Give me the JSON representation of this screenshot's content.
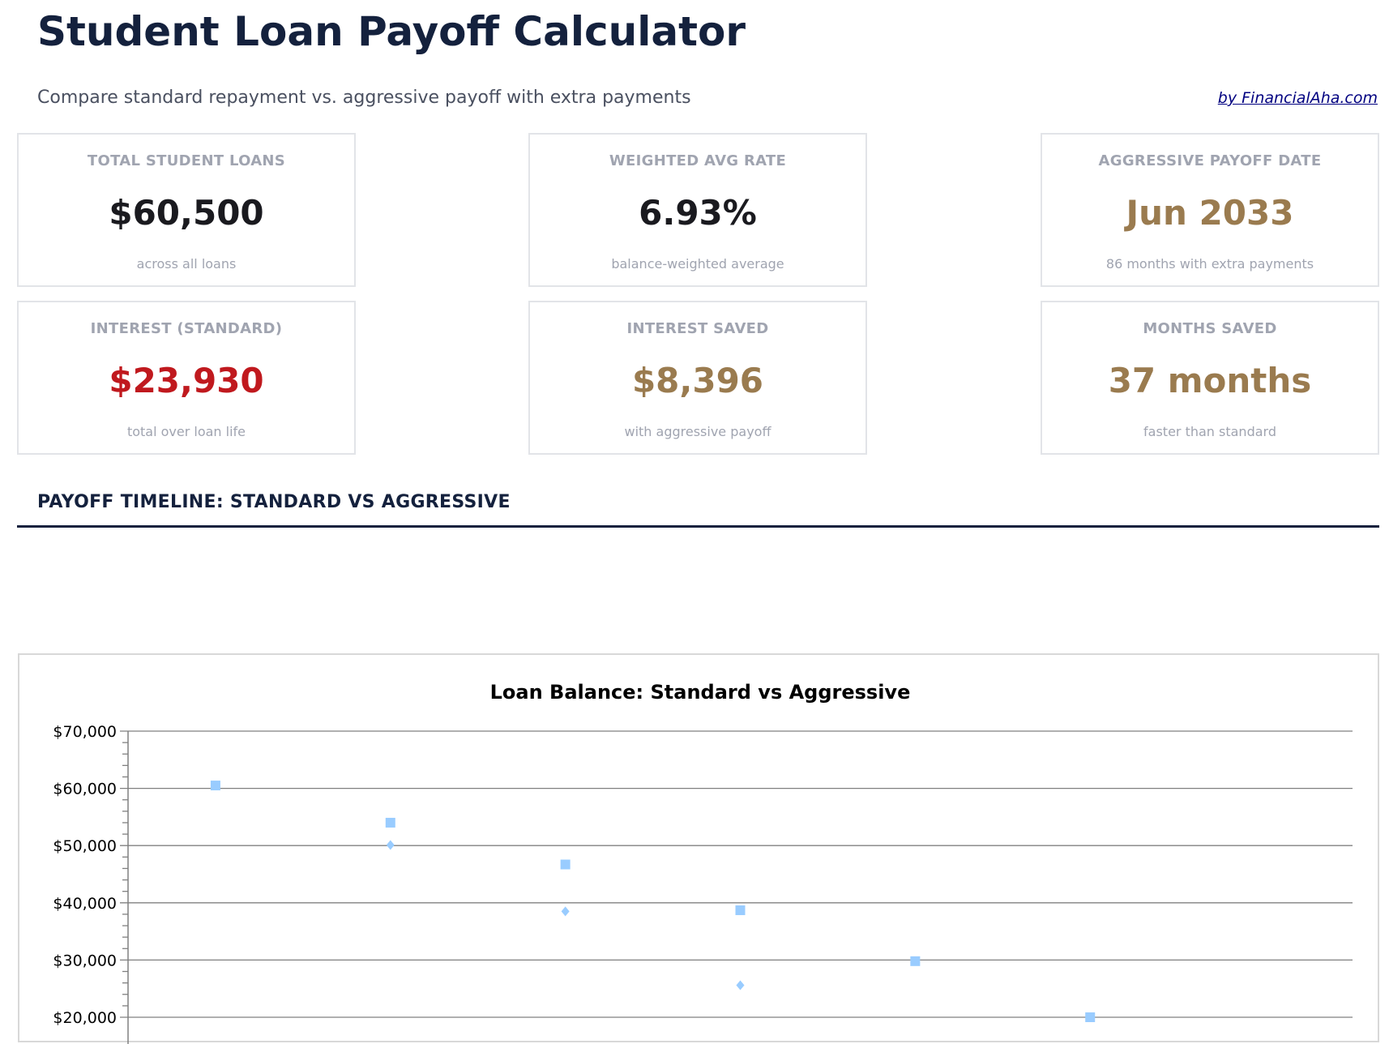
{
  "header": {
    "title": "Student Loan Payoff Calculator",
    "subtitle": "Compare standard repayment vs. aggressive payoff with extra payments",
    "credit": "by FinancialAha.com"
  },
  "cards": [
    {
      "label": "TOTAL STUDENT LOANS",
      "value": "$60,500",
      "sub": "across all loans",
      "color": "#1a1a1f"
    },
    {
      "label": "WEIGHTED AVG RATE",
      "value": "6.93%",
      "sub": "balance-weighted average",
      "color": "#1a1a1f"
    },
    {
      "label": "AGGRESSIVE PAYOFF DATE",
      "value": "Jun 2033",
      "sub": "86 months with extra payments",
      "color": "#9a7b4f"
    },
    {
      "label": "INTEREST (STANDARD)",
      "value": "$23,930",
      "sub": "total over loan life",
      "color": "#c0191e"
    },
    {
      "label": "INTEREST SAVED",
      "value": "$8,396",
      "sub": "with aggressive payoff",
      "color": "#9a7b4f"
    },
    {
      "label": "MONTHS SAVED",
      "value": "37 months",
      "sub": "faster than standard",
      "color": "#9a7b4f"
    }
  ],
  "section": {
    "title": "PAYOFF TIMELINE: STANDARD VS AGGRESSIVE"
  },
  "chart_data": {
    "type": "scatter",
    "title": "Loan Balance: Standard vs Aggressive",
    "ylim": [
      20000,
      70000
    ],
    "yticks": [
      "$70,000",
      "$60,000",
      "$50,000",
      "$40,000",
      "$30,000",
      "$20,000"
    ],
    "ytick_values": [
      70000,
      60000,
      50000,
      40000,
      30000,
      20000
    ],
    "grid": true,
    "x": [
      0,
      1,
      2,
      3,
      4,
      5,
      6
    ],
    "series": [
      {
        "marker": "square",
        "color": "#99ccff",
        "values": [
          60500,
          54000,
          46700,
          38700,
          29800,
          20000,
          null
        ]
      },
      {
        "marker": "diamond",
        "color": "#99ccff",
        "values": [
          null,
          50100,
          38500,
          25600,
          null,
          null,
          null
        ]
      }
    ]
  }
}
